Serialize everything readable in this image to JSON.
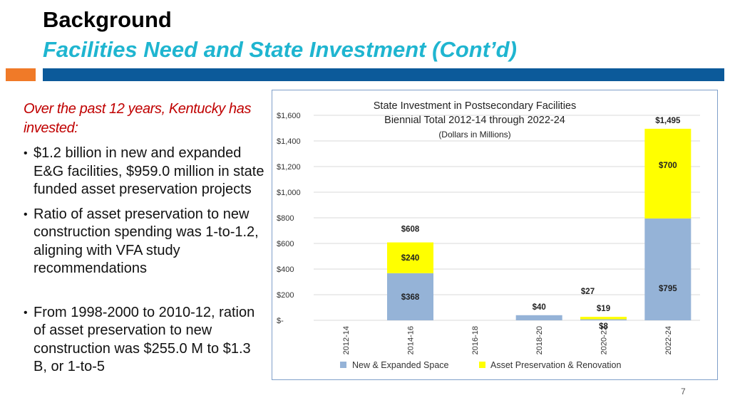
{
  "slide": {
    "title": "Background",
    "subtitle": "Facilities Need and State Investment (Cont’d)",
    "page_number": "7"
  },
  "left_panel": {
    "intro": "Over the past 12 years, Kentucky has invested:",
    "bullets": [
      "$1.2 billion in new and expanded E&G facilities, $959.0 million in state funded asset preservation projects",
      "Ratio of asset preservation to new construction spending was 1-to-1.2, aligning with VFA study recommendations",
      "From 1998-2000 to 2010-12, ration of asset preservation to new construction was $255.0 M to $1.3 B, or 1-to-5"
    ]
  },
  "colors": {
    "accent_orange": "#f07a28",
    "accent_blue": "#0c5a9a",
    "subtitle": "#1fb5d0",
    "intro_text": "#c00000",
    "series_new": "#95b3d7",
    "series_preservation": "#ffff00"
  },
  "chart_data": {
    "type": "bar",
    "stacked": true,
    "title": "State Investment in Postsecondary Facilities",
    "subtitle_lines": [
      "Biennial Total 2012-14 through 2022-24",
      "(Dollars in Millions)"
    ],
    "categories": [
      "2012-14",
      "2014-16",
      "2016-18",
      "2018-20",
      "2020-22",
      "2022-24"
    ],
    "series": [
      {
        "name": "New & Expanded Space",
        "values": [
          0,
          368,
          0,
          40,
          8,
          795
        ],
        "labels": [
          "",
          "$368",
          "",
          "$40",
          "$8",
          "$795"
        ]
      },
      {
        "name": "Asset Preservation & Renovation",
        "values": [
          0,
          240,
          0,
          0,
          19,
          700
        ],
        "labels": [
          "",
          "$240",
          "",
          "",
          "$19",
          "$700"
        ]
      }
    ],
    "totals": [
      {
        "category": "2014-16",
        "label": "$608"
      },
      {
        "category": "2020-22",
        "label": "$27"
      },
      {
        "category": "2022-24",
        "label": "$1,495"
      }
    ],
    "ylim": [
      0,
      1600
    ],
    "yticks": [
      0,
      200,
      400,
      600,
      800,
      1000,
      1200,
      1400,
      1600
    ],
    "ytick_labels": [
      "$-",
      "$200",
      "$400",
      "$600",
      "$800",
      "$1,000",
      "$1,200",
      "$1,400",
      "$1,600"
    ],
    "grid": true,
    "legend_position": "bottom"
  }
}
